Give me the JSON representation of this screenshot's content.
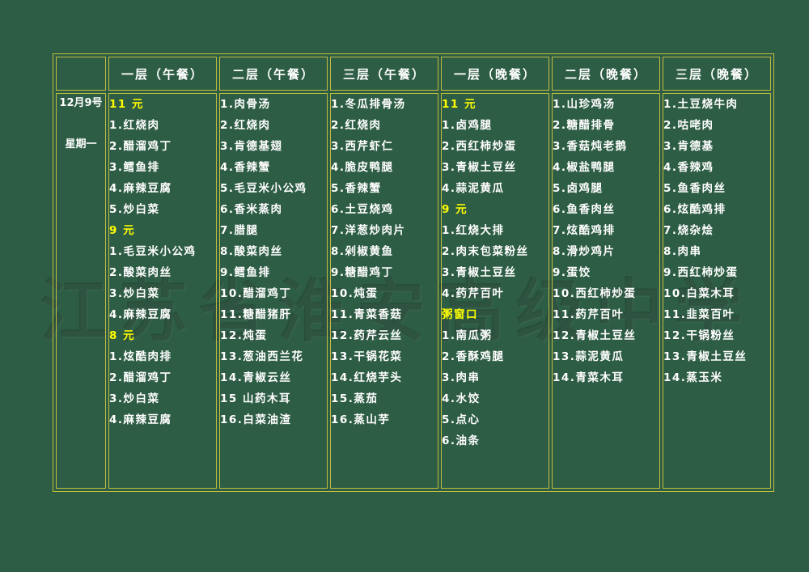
{
  "colors": {
    "background": "#2e5d45",
    "grid": "#c2bd3e",
    "text": "#ffffff",
    "highlight": "#ffff00"
  },
  "date": {
    "line1": "12月9号",
    "line2": "星期一"
  },
  "watermark": "江苏省淮安高级中学",
  "columns": [
    {
      "header": "一层（午餐）",
      "items": [
        {
          "text": "11 元",
          "type": "price"
        },
        {
          "text": "1.红烧肉",
          "type": "dish"
        },
        {
          "text": "2.醋溜鸡丁",
          "type": "dish"
        },
        {
          "text": "3.鳕鱼排",
          "type": "dish"
        },
        {
          "text": "4.麻辣豆腐",
          "type": "dish"
        },
        {
          "text": "5.炒白菜",
          "type": "dish"
        },
        {
          "text": "9 元",
          "type": "price"
        },
        {
          "text": "1.毛豆米小公鸡",
          "type": "dish"
        },
        {
          "text": "2.酸菜肉丝",
          "type": "dish"
        },
        {
          "text": "3.炒白菜",
          "type": "dish"
        },
        {
          "text": "4.麻辣豆腐",
          "type": "dish"
        },
        {
          "text": "8 元",
          "type": "price"
        },
        {
          "text": "1.炫酷肉排",
          "type": "dish"
        },
        {
          "text": "2.醋溜鸡丁",
          "type": "dish"
        },
        {
          "text": "3.炒白菜",
          "type": "dish"
        },
        {
          "text": "4.麻辣豆腐",
          "type": "dish"
        }
      ]
    },
    {
      "header": "二层（午餐）",
      "items": [
        {
          "text": "1.肉骨汤",
          "type": "dish"
        },
        {
          "text": "2.红烧肉",
          "type": "dish"
        },
        {
          "text": "3.肯德基翅",
          "type": "dish"
        },
        {
          "text": "4.香辣蟹",
          "type": "dish"
        },
        {
          "text": "5.毛豆米小公鸡",
          "type": "dish"
        },
        {
          "text": "6.香米蒸肉",
          "type": "dish"
        },
        {
          "text": "7.腊腿",
          "type": "dish"
        },
        {
          "text": "8.酸菜肉丝",
          "type": "dish"
        },
        {
          "text": "9.鳕鱼排",
          "type": "dish"
        },
        {
          "text": "10.醋溜鸡丁",
          "type": "dish"
        },
        {
          "text": "11.糖醋猪肝",
          "type": "dish"
        },
        {
          "text": "12.炖蛋",
          "type": "dish"
        },
        {
          "text": "13.葱油西兰花",
          "type": "dish"
        },
        {
          "text": "14.青椒云丝",
          "type": "dish"
        },
        {
          "text": "15 山药木耳",
          "type": "dish"
        },
        {
          "text": "16.白菜油渣",
          "type": "dish"
        }
      ]
    },
    {
      "header": "三层（午餐）",
      "items": [
        {
          "text": "1.冬瓜排骨汤",
          "type": "dish"
        },
        {
          "text": "2.红烧肉",
          "type": "dish"
        },
        {
          "text": "3.西芹虾仁",
          "type": "dish"
        },
        {
          "text": "4.脆皮鸭腿",
          "type": "dish"
        },
        {
          "text": "5.香辣蟹",
          "type": "dish"
        },
        {
          "text": "6.土豆烧鸡",
          "type": "dish"
        },
        {
          "text": "7.洋葱炒肉片",
          "type": "dish"
        },
        {
          "text": "8.剁椒黄鱼",
          "type": "dish"
        },
        {
          "text": "9.糖醋鸡丁",
          "type": "dish"
        },
        {
          "text": "10.炖蛋",
          "type": "dish"
        },
        {
          "text": "11.青菜香菇",
          "type": "dish"
        },
        {
          "text": "12.药芹云丝",
          "type": "dish"
        },
        {
          "text": "13.干锅花菜",
          "type": "dish"
        },
        {
          "text": "14.红烧芋头",
          "type": "dish"
        },
        {
          "text": "15.蒸茄",
          "type": "dish"
        },
        {
          "text": "16.蒸山芋",
          "type": "dish"
        }
      ]
    },
    {
      "header": "一层（晚餐）",
      "items": [
        {
          "text": "11 元",
          "type": "price"
        },
        {
          "text": "1.卤鸡腿",
          "type": "dish"
        },
        {
          "text": "2.西红柿炒蛋",
          "type": "dish"
        },
        {
          "text": "3.青椒土豆丝",
          "type": "dish"
        },
        {
          "text": "4.蒜泥黄瓜",
          "type": "dish"
        },
        {
          "text": "9 元",
          "type": "price"
        },
        {
          "text": "1.红烧大排",
          "type": "dish"
        },
        {
          "text": "2.肉末包菜粉丝",
          "type": "dish"
        },
        {
          "text": "3.青椒土豆丝",
          "type": "dish"
        },
        {
          "text": "4.药芹百叶",
          "type": "dish"
        },
        {
          "text": "粥窗口",
          "type": "price"
        },
        {
          "text": "1.南瓜粥",
          "type": "dish"
        },
        {
          "text": "2.香酥鸡腿",
          "type": "dish"
        },
        {
          "text": "3.肉串",
          "type": "dish"
        },
        {
          "text": "4.水饺",
          "type": "dish"
        },
        {
          "text": "5.点心",
          "type": "dish"
        },
        {
          "text": "6.油条",
          "type": "dish"
        }
      ]
    },
    {
      "header": "二层（晚餐）",
      "items": [
        {
          "text": "1.山珍鸡汤",
          "type": "dish"
        },
        {
          "text": "2.糖醋排骨",
          "type": "dish"
        },
        {
          "text": "3.香菇炖老鹅",
          "type": "dish"
        },
        {
          "text": "4.椒盐鸭腿",
          "type": "dish"
        },
        {
          "text": "5.卤鸡腿",
          "type": "dish"
        },
        {
          "text": "6.鱼香肉丝",
          "type": "dish"
        },
        {
          "text": "7.炫酷鸡排",
          "type": "dish"
        },
        {
          "text": "8.滑炒鸡片",
          "type": "dish"
        },
        {
          "text": "9.蛋饺",
          "type": "dish"
        },
        {
          "text": "10.西红柿炒蛋",
          "type": "dish"
        },
        {
          "text": "11.药芹百叶",
          "type": "dish"
        },
        {
          "text": "12.青椒土豆丝",
          "type": "dish"
        },
        {
          "text": "13.蒜泥黄瓜",
          "type": "dish"
        },
        {
          "text": "14.青菜木耳",
          "type": "dish"
        }
      ]
    },
    {
      "header": "三层（晚餐）",
      "items": [
        {
          "text": "1.土豆烧牛肉",
          "type": "dish"
        },
        {
          "text": "2.咕咾肉",
          "type": "dish"
        },
        {
          "text": "3.肯德基",
          "type": "dish"
        },
        {
          "text": "4.香辣鸡",
          "type": "dish"
        },
        {
          "text": "5.鱼香肉丝",
          "type": "dish"
        },
        {
          "text": "6.炫酷鸡排",
          "type": "dish"
        },
        {
          "text": "7.烧杂烩",
          "type": "dish"
        },
        {
          "text": "8.肉串",
          "type": "dish"
        },
        {
          "text": "9.西红柿炒蛋",
          "type": "dish"
        },
        {
          "text": "10.白菜木耳",
          "type": "dish"
        },
        {
          "text": "11.韭菜百叶",
          "type": "dish"
        },
        {
          "text": "12.干锅粉丝",
          "type": "dish"
        },
        {
          "text": "13.青椒土豆丝",
          "type": "dish"
        },
        {
          "text": "14.蒸玉米",
          "type": "dish"
        }
      ]
    }
  ]
}
